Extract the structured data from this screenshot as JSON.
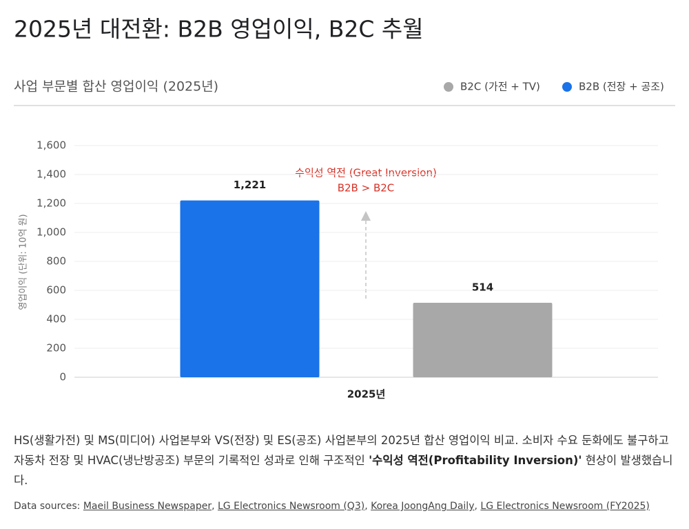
{
  "chart_data": {
    "type": "bar",
    "title": "2025년 대전환: B2B 영업이익, B2C 추월",
    "subtitle": "사업 부문별 합산 영업이익 (2025년)",
    "ylabel": "영업이익 (단위: 10억 원)",
    "categories": [
      "2025년"
    ],
    "series": [
      {
        "name": "B2C (가전 + TV)",
        "color": "#a8a8a8",
        "values": [
          514
        ]
      },
      {
        "name": "B2B (전장 + 공조)",
        "color": "#1a73e8",
        "values": [
          1221
        ],
        "value_labels": [
          "1,221"
        ]
      }
    ],
    "ylim": [
      0,
      1600
    ],
    "yticks": [
      0,
      200,
      400,
      600,
      800,
      {
        "value": 1000,
        "label": "1,000"
      },
      {
        "value": 1200,
        "label": "1,200"
      },
      {
        "value": 1400,
        "label": "1,400"
      },
      {
        "value": 1600,
        "label": "1,600"
      }
    ],
    "grid": true,
    "annotations": [
      "수익성 역전 (Great Inversion)",
      "B2B > B2C"
    ]
  },
  "description": {
    "before": "HS(생활가전) 및 MS(미디어) 사업본부와 VS(전장) 및 ES(공조) 사업본부의 2025년 합산 영업이익 비교. 소비자 수요 둔화에도 불구하고 자동차 전장 및 HVAC(냉난방공조) 부문의 기록적인 성과로 인해 구조적인 ",
    "bold": "'수익성 역전(Profitability Inversion)'",
    "after": " 현상이 발생했습니다."
  },
  "sources": {
    "label": "Data sources:",
    "links": [
      "Maeil Business Newspaper",
      "LG Electronics Newsroom (Q3)",
      "Korea JoongAng Daily",
      "LG Electronics Newsroom (FY2025)"
    ]
  }
}
